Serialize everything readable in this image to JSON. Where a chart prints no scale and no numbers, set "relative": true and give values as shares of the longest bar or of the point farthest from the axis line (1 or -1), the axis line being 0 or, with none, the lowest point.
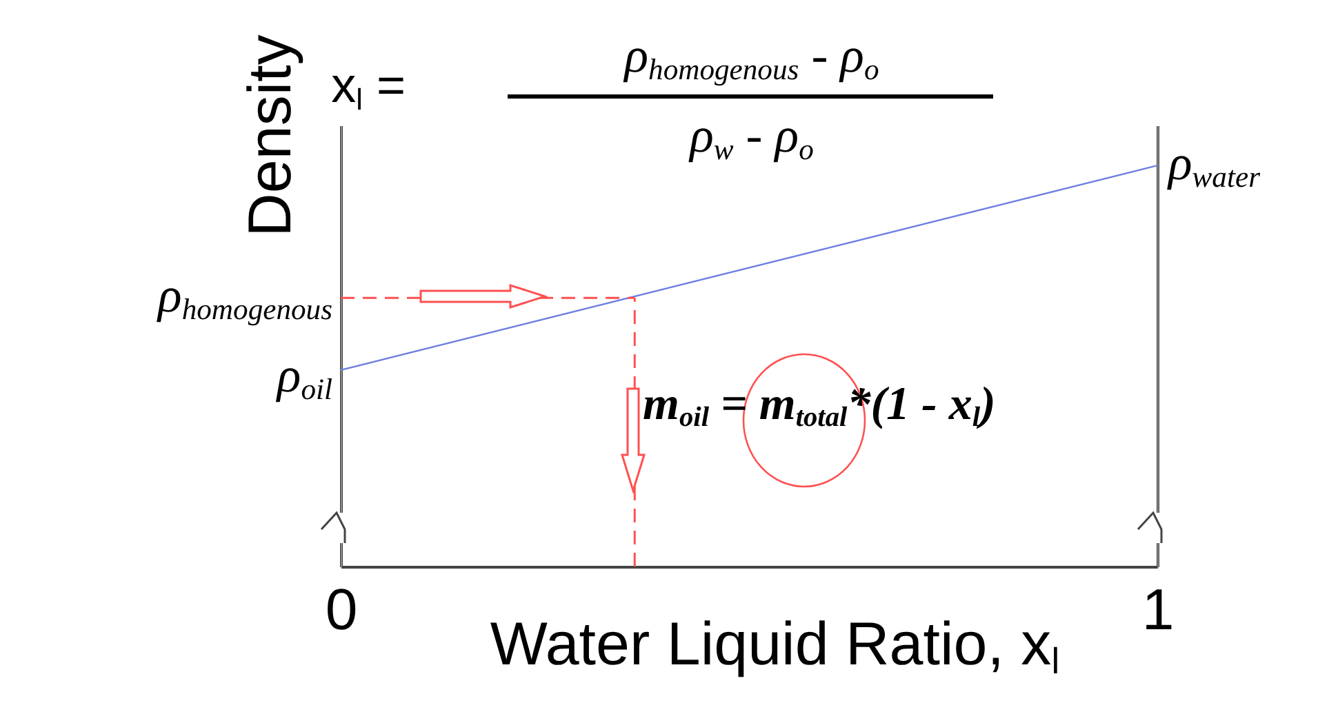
{
  "chart_data": {
    "type": "line",
    "relative": true,
    "xlabel": "Water Liquid Ratio, x$_{l}$",
    "ylabel": "Density",
    "x": [
      0,
      1
    ],
    "xlim": [
      0,
      1
    ],
    "xticks": [
      0,
      1
    ],
    "series": [
      {
        "color": "#6f7fdf",
        "values": [
          0.49,
          1
        ]
      }
    ],
    "ref_lines": [
      {
        "axis": "y",
        "value": 0.67,
        "label": "ρ$_{homogenous}$",
        "color": "#ff5050",
        "line_style": "dashed"
      },
      {
        "axis": "x",
        "value": 0.36,
        "color": "#ff5050",
        "line_style": "dashed"
      }
    ],
    "annotations": [
      {
        "text": "ρ$_{oil}$",
        "x": 0,
        "y": 0.49
      },
      {
        "text": "ρ$_{water}$",
        "x": 1,
        "y": 1
      },
      "x$_{l}$ =",
      "ρ$_{homogenous}$ - ρ$_{o}$",
      "ρ$_{w}$ - ρ$_{o}$",
      "m$_{oil}$ = m$_{total}$*(1 - x$_{l}$)"
    ],
    "grid": false,
    "legend": false,
    "marker": "none",
    "line_style": "solid"
  }
}
